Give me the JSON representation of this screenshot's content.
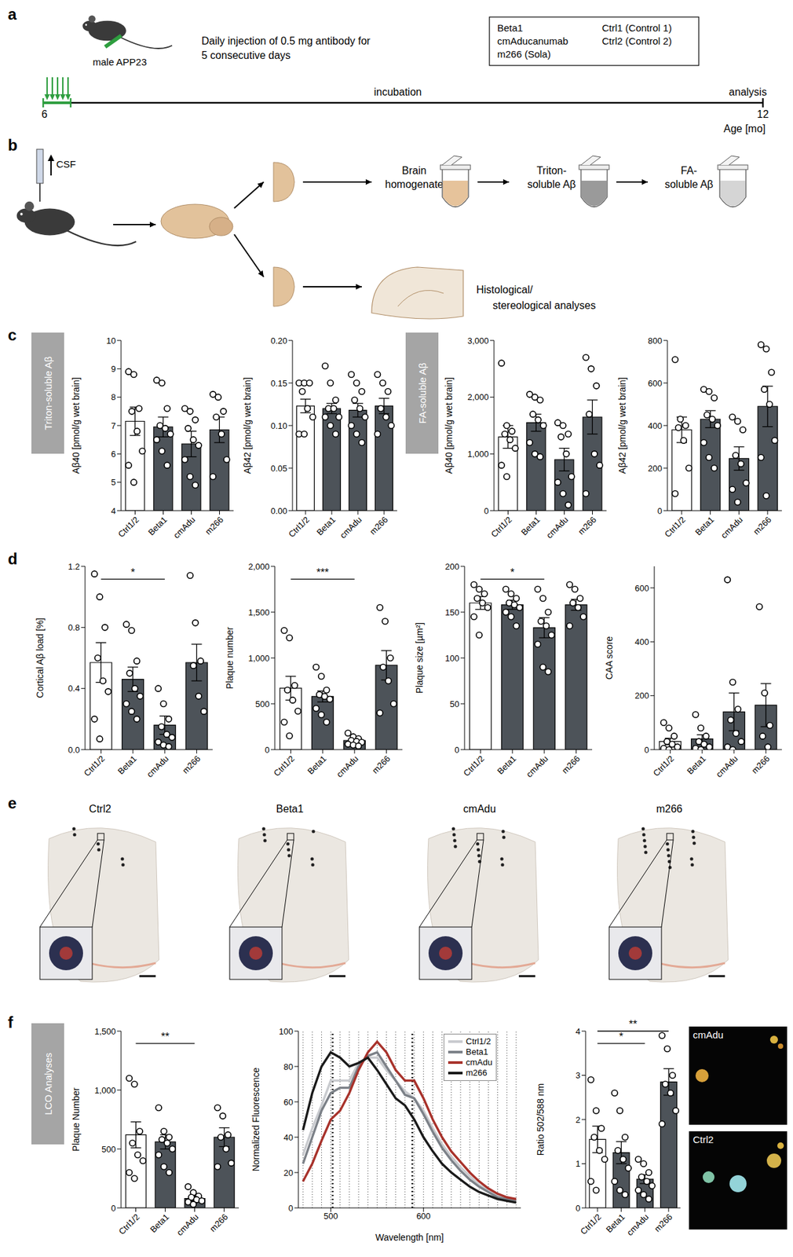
{
  "panel_labels": [
    "a",
    "b",
    "c",
    "d",
    "e",
    "f"
  ],
  "panel_a": {
    "subject": "male APP23",
    "treatment": [
      "Daily injection of 0.5 mg antibody for",
      "5 consecutive days"
    ],
    "injections": 5,
    "antibodies": [
      "Beta1",
      "cmAducanumab",
      "m266 (Sola)"
    ],
    "controls": [
      "Ctrl1 (Control 1)",
      "Ctrl2 (Control 2)"
    ],
    "phase": "incubation",
    "endpoint": "analysis",
    "start_age": "6",
    "end_age": "12",
    "age_label": "Age [mo]"
  },
  "panel_b": {
    "csf": "CSF",
    "steps": [
      [
        "Brain",
        "homogenate"
      ],
      [
        "Triton-",
        "soluble Aβ"
      ],
      [
        "FA-",
        "soluble Aβ"
      ]
    ],
    "histology": [
      "Histological/",
      "stereological analyses"
    ]
  },
  "side_labels": {
    "c_left": "Triton-soluble Aβ",
    "c_right": "FA-soluble Aβ",
    "f": "LCO Analyses"
  },
  "panel_e": {
    "labels": [
      "Ctrl2",
      "Beta1",
      "cmAdu",
      "m266"
    ]
  },
  "panel_f_images": {
    "labels": [
      "cmAdu",
      "Ctrl2"
    ]
  },
  "chart_data": [
    {
      "type": "bar",
      "y_label": "Aβ40 [pmol/g wet brain]",
      "categories": [
        "Ctrl1/2",
        "Beta1",
        "cmAdu",
        "m266"
      ],
      "colors": [
        "#ffffff",
        "#4d5359",
        "#4d5359",
        "#4d5359"
      ],
      "values": [
        7.15,
        6.95,
        6.35,
        6.85
      ],
      "errors": [
        0.5,
        0.35,
        0.45,
        0.45
      ],
      "points": [
        [
          8.9,
          8.8,
          7.6,
          7.5,
          6.8,
          6.1,
          5.6,
          5.0
        ],
        [
          8.6,
          8.5,
          7.6,
          7.0,
          6.9,
          6.7,
          6.5,
          6.1,
          5.6
        ],
        [
          7.6,
          7.5,
          7.2,
          6.9,
          6.5,
          6.3,
          5.8,
          5.2,
          4.9
        ],
        [
          8.1,
          8.0,
          7.5,
          7.3,
          6.7,
          5.8,
          5.2
        ]
      ],
      "ylim": [
        4,
        10
      ],
      "yticks": [
        4,
        5,
        6,
        7,
        8,
        9,
        10
      ]
    },
    {
      "type": "bar",
      "y_label": "Aβ42 [pmol/g wet brain]",
      "categories": [
        "Ctrl1/2",
        "Beta1",
        "cmAdu",
        "m266"
      ],
      "colors": [
        "#ffffff",
        "#4d5359",
        "#4d5359",
        "#4d5359"
      ],
      "values": [
        0.123,
        0.12,
        0.118,
        0.123
      ],
      "errors": [
        0.008,
        0.006,
        0.008,
        0.009
      ],
      "points": [
        [
          0.15,
          0.15,
          0.15,
          0.14,
          0.12,
          0.11,
          0.09,
          0.09
        ],
        [
          0.17,
          0.15,
          0.13,
          0.12,
          0.12,
          0.11,
          0.11,
          0.1,
          0.09
        ],
        [
          0.16,
          0.15,
          0.14,
          0.13,
          0.12,
          0.11,
          0.1,
          0.09,
          0.08
        ],
        [
          0.16,
          0.15,
          0.14,
          0.12,
          0.11,
          0.1,
          0.09
        ]
      ],
      "ylim": [
        0,
        0.2
      ],
      "yticks": [
        {
          "value": 0,
          "label": "0.00"
        },
        0.05,
        {
          "value": 0.1,
          "label": "0.10"
        },
        0.15,
        {
          "value": 0.2,
          "label": "0.20"
        }
      ]
    },
    {
      "type": "bar",
      "y_label": "Aβ40 [pmol/g wet brain]",
      "categories": [
        "Ctrl1/2",
        "Beta1",
        "cmAdu",
        "m266"
      ],
      "colors": [
        "#ffffff",
        "#4d5359",
        "#4d5359",
        "#4d5359"
      ],
      "values": [
        1300,
        1550,
        900,
        1650
      ],
      "errors": [
        200,
        150,
        200,
        300
      ],
      "points": [
        [
          2600,
          1500,
          1400,
          1350,
          1250,
          1100,
          800,
          600
        ],
        [
          2050,
          2000,
          1950,
          1700,
          1600,
          1500,
          1200,
          1000,
          950
        ],
        [
          1550,
          1500,
          1350,
          1300,
          1000,
          600,
          500,
          300,
          100
        ],
        [
          2700,
          2500,
          2200,
          1700,
          1000,
          800,
          300
        ]
      ],
      "ylim": [
        0,
        3000
      ],
      "yticks": [
        0,
        {
          "value": 1000,
          "label": "1,000"
        },
        {
          "value": 2000,
          "label": "2,000"
        },
        {
          "value": 3000,
          "label": "3,000"
        }
      ]
    },
    {
      "type": "bar",
      "y_label": "Aβ42 [pmol/g wet brain]",
      "categories": [
        "Ctrl1/2",
        "Beta1",
        "cmAdu",
        "m266"
      ],
      "colors": [
        "#ffffff",
        "#4d5359",
        "#4d5359",
        "#4d5359"
      ],
      "values": [
        380,
        430,
        245,
        490
      ],
      "errors": [
        60,
        40,
        55,
        95
      ],
      "points": [
        [
          710,
          430,
          400,
          390,
          330,
          200,
          80
        ],
        [
          570,
          560,
          530,
          450,
          430,
          400,
          320,
          250,
          200
        ],
        [
          440,
          420,
          380,
          260,
          220,
          130,
          100,
          40
        ],
        [
          780,
          760,
          650,
          570,
          500,
          330,
          250,
          70
        ]
      ],
      "ylim": [
        0,
        800
      ],
      "yticks": [
        0,
        200,
        400,
        600,
        800
      ]
    },
    {
      "type": "bar",
      "y_label": "Cortical Aβ load [%]",
      "categories": [
        "Ctrl1/2",
        "Beta1",
        "cmAdu",
        "m266"
      ],
      "colors": [
        "#ffffff",
        "#4d5359",
        "#4d5359",
        "#4d5359"
      ],
      "values": [
        0.57,
        0.46,
        0.16,
        0.57
      ],
      "errors": [
        0.13,
        0.08,
        0.06,
        0.12
      ],
      "points": [
        [
          1.15,
          1.0,
          0.8,
          0.6,
          0.45,
          0.38,
          0.2,
          0.07
        ],
        [
          0.82,
          0.78,
          0.58,
          0.5,
          0.4,
          0.35,
          0.3,
          0.25,
          0.2
        ],
        [
          0.4,
          0.3,
          0.2,
          0.15,
          0.1,
          0.08,
          0.05,
          0.03,
          0.02
        ],
        [
          1.14,
          0.83,
          0.58,
          0.55,
          0.35,
          0.25
        ]
      ],
      "ylim": [
        0,
        1.2
      ],
      "yticks": [
        {
          "value": 0,
          "label": "0.0"
        },
        0.4,
        0.8,
        1.2
      ],
      "significance": [
        {
          "from": "Ctrl1/2",
          "to": "cmAdu",
          "label": "*"
        }
      ]
    },
    {
      "type": "bar",
      "y_label": "Plaque number",
      "categories": [
        "Ctrl1/2",
        "Beta1",
        "cmAdu",
        "m266"
      ],
      "colors": [
        "#ffffff",
        "#4d5359",
        "#4d5359",
        "#4d5359"
      ],
      "values": [
        670,
        580,
        100,
        920
      ],
      "errors": [
        130,
        60,
        20,
        160
      ],
      "points": [
        [
          1300,
          1220,
          700,
          650,
          540,
          420,
          300,
          150
        ],
        [
          900,
          800,
          650,
          600,
          580,
          550,
          450,
          380,
          300
        ],
        [
          180,
          140,
          120,
          100,
          90,
          80,
          60,
          50,
          40
        ],
        [
          1550,
          1400,
          1000,
          900,
          750,
          500,
          400
        ]
      ],
      "ylim": [
        0,
        2000
      ],
      "yticks": [
        0,
        500,
        {
          "value": 1000,
          "label": "1,000"
        },
        {
          "value": 1500,
          "label": "1,500"
        },
        {
          "value": 2000,
          "label": "2,000"
        }
      ],
      "significance": [
        {
          "from": "Ctrl1/2",
          "to": "cmAdu",
          "label": "***"
        }
      ]
    },
    {
      "type": "bar",
      "y_label": "Plaque size [µm²]",
      "categories": [
        "Ctrl1/2",
        "Beta1",
        "cmAdu",
        "m266"
      ],
      "colors": [
        "#ffffff",
        "#4d5359",
        "#4d5359",
        "#4d5359"
      ],
      "values": [
        160,
        158,
        133,
        158
      ],
      "errors": [
        7,
        5,
        11,
        6
      ],
      "points": [
        [
          180,
          175,
          170,
          165,
          160,
          155,
          145,
          125
        ],
        [
          175,
          170,
          165,
          160,
          158,
          155,
          150,
          145,
          135
        ],
        [
          175,
          165,
          150,
          140,
          135,
          125,
          115,
          90,
          85
        ],
        [
          180,
          175,
          165,
          160,
          155,
          145,
          135
        ]
      ],
      "ylim": [
        0,
        200
      ],
      "yticks": [
        0,
        50,
        100,
        150,
        200
      ],
      "significance": [
        {
          "from": "Ctrl1/2",
          "to": "cmAdu",
          "label": "*"
        }
      ]
    },
    {
      "type": "bar",
      "y_label": "CAA score",
      "categories": [
        "Ctrl1/2",
        "Beta1",
        "cmAdu",
        "m266"
      ],
      "colors": [
        "#ffffff",
        "#4d5359",
        "#4d5359",
        "#4d5359"
      ],
      "values": [
        30,
        40,
        140,
        165
      ],
      "errors": [
        12,
        15,
        70,
        80
      ],
      "points": [
        [
          100,
          80,
          50,
          30,
          20,
          10,
          5,
          0
        ],
        [
          130,
          80,
          50,
          30,
          20,
          10,
          5,
          0
        ],
        [
          630,
          250,
          150,
          110,
          60,
          30,
          10,
          0
        ],
        [
          530,
          210,
          90,
          50,
          10
        ]
      ],
      "ylim": [
        0,
        680
      ],
      "yticks": [
        0,
        200,
        400,
        600
      ]
    },
    {
      "type": "bar",
      "y_label": "Plaque Number",
      "categories": [
        "Ctrl1/2",
        "Beta1",
        "cmAdu",
        "m266"
      ],
      "colors": [
        "#ffffff",
        "#4d5359",
        "#4d5359",
        "#4d5359"
      ],
      "values": [
        620,
        560,
        80,
        600
      ],
      "errors": [
        110,
        60,
        20,
        80
      ],
      "points": [
        [
          1100,
          1050,
          650,
          550,
          450,
          400,
          300,
          250
        ],
        [
          850,
          650,
          600,
          580,
          550,
          500,
          450,
          350,
          300
        ],
        [
          180,
          130,
          100,
          90,
          70,
          60,
          50,
          30
        ],
        [
          850,
          780,
          620,
          600,
          500,
          380,
          350
        ]
      ],
      "ylim": [
        0,
        1500
      ],
      "yticks": [
        0,
        500,
        {
          "value": 1000,
          "label": "1,000"
        },
        {
          "value": 1500,
          "label": "1,500"
        }
      ],
      "significance": [
        {
          "from": "Ctrl1/2",
          "to": "cmAdu",
          "label": "**"
        }
      ]
    },
    {
      "type": "line",
      "y_label": "Normalized Fluorescence",
      "x_label": "Wavelength [nm]",
      "x": [
        470,
        480,
        490,
        500,
        510,
        520,
        530,
        540,
        550,
        560,
        570,
        580,
        590,
        600,
        610,
        620,
        630,
        640,
        650,
        660,
        670,
        680,
        690,
        700
      ],
      "series": [
        {
          "name": "Ctrl1/2",
          "color": "#c9cbcf",
          "values": [
            30,
            45,
            58,
            72,
            72,
            72,
            82,
            85,
            85,
            78,
            72,
            66,
            62,
            55,
            45,
            36,
            29,
            23,
            18,
            13,
            10,
            7,
            5,
            4
          ]
        },
        {
          "name": "Beta1",
          "color": "#7c8188",
          "values": [
            25,
            40,
            55,
            65,
            68,
            68,
            80,
            86,
            88,
            80,
            72,
            64,
            62,
            53,
            43,
            34,
            27,
            21,
            16,
            12,
            9,
            6,
            5,
            4
          ]
        },
        {
          "name": "cmAdu",
          "color": "#a8322b",
          "values": [
            15,
            25,
            38,
            50,
            55,
            65,
            78,
            88,
            94,
            88,
            78,
            72,
            72,
            62,
            50,
            40,
            32,
            26,
            20,
            15,
            11,
            8,
            6,
            5
          ]
        },
        {
          "name": "m266",
          "color": "#1a1a1a",
          "values": [
            44,
            65,
            80,
            88,
            85,
            80,
            82,
            85,
            78,
            70,
            62,
            58,
            50,
            40,
            32,
            25,
            20,
            16,
            12,
            9,
            7,
            5,
            4,
            3
          ]
        }
      ],
      "marked_wavelengths": [
        502,
        588
      ],
      "xlim": [
        465,
        705
      ],
      "xticks": [
        500,
        600
      ],
      "ylim": [
        0,
        100
      ],
      "yticks": [
        0,
        20,
        40,
        60,
        80,
        100
      ],
      "grid": true,
      "legend": "top-right"
    },
    {
      "type": "bar",
      "y_label": "Ratio 502/588 nm",
      "categories": [
        "Ctrl1/2",
        "Beta1",
        "cmAdu",
        "m266"
      ],
      "colors": [
        "#ffffff",
        "#4d5359",
        "#4d5359",
        "#4d5359"
      ],
      "values": [
        1.55,
        1.25,
        0.65,
        2.85
      ],
      "errors": [
        0.3,
        0.25,
        0.1,
        0.3
      ],
      "points": [
        [
          2.9,
          2.2,
          1.8,
          1.6,
          1.3,
          1.1,
          0.6,
          0.4
        ],
        [
          2.6,
          2.2,
          1.6,
          1.3,
          1.1,
          0.9,
          0.6,
          0.4,
          0.3
        ],
        [
          1.1,
          1.0,
          0.8,
          0.7,
          0.6,
          0.5,
          0.4,
          0.3,
          0.2
        ],
        [
          3.9,
          3.6,
          3.0,
          2.8,
          2.6,
          2.2,
          1.9
        ]
      ],
      "ylim": [
        0,
        4
      ],
      "yticks": [
        0,
        1,
        2,
        3,
        4
      ],
      "significance": [
        {
          "from": "Ctrl1/2",
          "to": "cmAdu",
          "label": "*"
        },
        {
          "from": "Ctrl1/2",
          "to": "m266",
          "label": "**"
        }
      ]
    }
  ]
}
